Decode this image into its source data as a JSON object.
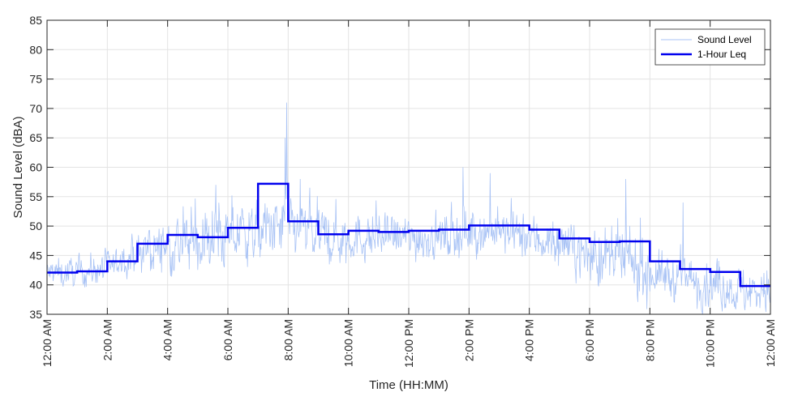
{
  "chart_data": {
    "type": "line",
    "title": "",
    "xlabel": "Time (HH:MM)",
    "ylabel": "Sound Level (dBA)",
    "ylim": [
      35,
      85
    ],
    "yticks": [
      35,
      40,
      45,
      50,
      55,
      60,
      65,
      70,
      75,
      80,
      85
    ],
    "xlim_hours": [
      0,
      24
    ],
    "xtick_hours": [
      0,
      2,
      4,
      6,
      8,
      10,
      12,
      14,
      16,
      18,
      20,
      22,
      24
    ],
    "xtick_labels": [
      "12:00 AM",
      "2:00 AM",
      "4:00 AM",
      "6:00 AM",
      "8:00 AM",
      "10:00 AM",
      "12:00 PM",
      "2:00 PM",
      "4:00 PM",
      "6:00 PM",
      "8:00 PM",
      "10:00 PM",
      "12:00 AM"
    ],
    "grid": true,
    "legend_position": "top-right",
    "series": [
      {
        "name": "Sound Level",
        "color": "#a9c3f5",
        "style": "thin-noisy",
        "hourly_mean": [
          42,
          42,
          43,
          45,
          47,
          47,
          48,
          49,
          50,
          48,
          48,
          48,
          48,
          48,
          49,
          49,
          48,
          47,
          45,
          44,
          42,
          41,
          40,
          39
        ],
        "hourly_spread": [
          2,
          2,
          2,
          3,
          4,
          4,
          4,
          4,
          4,
          4,
          3,
          3,
          3,
          3,
          3,
          3,
          3,
          3,
          4,
          4,
          3,
          3,
          3,
          3
        ],
        "notable_peaks": [
          {
            "hour": 7.95,
            "value": 71
          },
          {
            "hour": 7.9,
            "value": 65
          },
          {
            "hour": 13.8,
            "value": 60
          },
          {
            "hour": 14.7,
            "value": 59
          },
          {
            "hour": 19.2,
            "value": 58
          },
          {
            "hour": 21.1,
            "value": 54
          },
          {
            "hour": 5.6,
            "value": 57
          },
          {
            "hour": 8.4,
            "value": 58
          }
        ]
      },
      {
        "name": "1-Hour Leq",
        "color": "#0000ee",
        "style": "step",
        "hourly_values": [
          42.1,
          42.3,
          44.0,
          47.0,
          48.5,
          48.1,
          49.7,
          57.2,
          50.8,
          48.6,
          49.2,
          49.0,
          49.2,
          49.4,
          50.1,
          50.1,
          49.4,
          47.9,
          47.3,
          47.4,
          44.0,
          42.7,
          42.2,
          39.8
        ]
      }
    ]
  }
}
